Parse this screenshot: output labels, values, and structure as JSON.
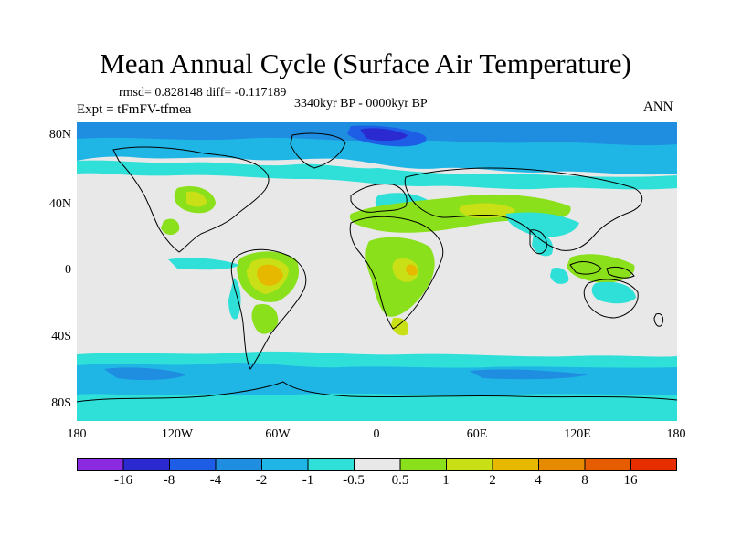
{
  "title": "Mean Annual Cycle (Surface Air Temperature)",
  "stats": "rmsd= 0.828148 diff= -0.117189",
  "period": "3340kyr BP - 0000kyr BP",
  "experiment": "Expt = tFmFV-tfmea",
  "season": "ANN",
  "lat_labels": [
    "80N",
    "40N",
    "0",
    "40S",
    "80S"
  ],
  "lon_labels": [
    "180",
    "120W",
    "60W",
    "0",
    "60E",
    "120E",
    "180"
  ],
  "colorbar": {
    "colors": [
      "#8a2be2",
      "#2a2ad0",
      "#1e5ee6",
      "#1f8ee0",
      "#1fb6e6",
      "#2ee0d8",
      "#e8e8e8",
      "#8ae01a",
      "#c9e016",
      "#e6b800",
      "#e68a00",
      "#e65c00",
      "#e62e00"
    ],
    "labels": [
      "-16",
      "-8",
      "-4",
      "-2",
      "-1",
      "-0.5",
      "0.5",
      "1",
      "2",
      "4",
      "8",
      "16"
    ]
  },
  "field_colors": {
    "neutral": "#e8e8e8",
    "cool_light": "#2ee0d8",
    "cool": "#1fb6e6",
    "cool_mid": "#1f8ee0",
    "cool_strong": "#1e5ee6",
    "cool_deep": "#2a2ad0",
    "warm_light": "#8ae01a",
    "warm": "#c9e016",
    "warm_mid": "#e6b800",
    "coast": "#000000"
  }
}
